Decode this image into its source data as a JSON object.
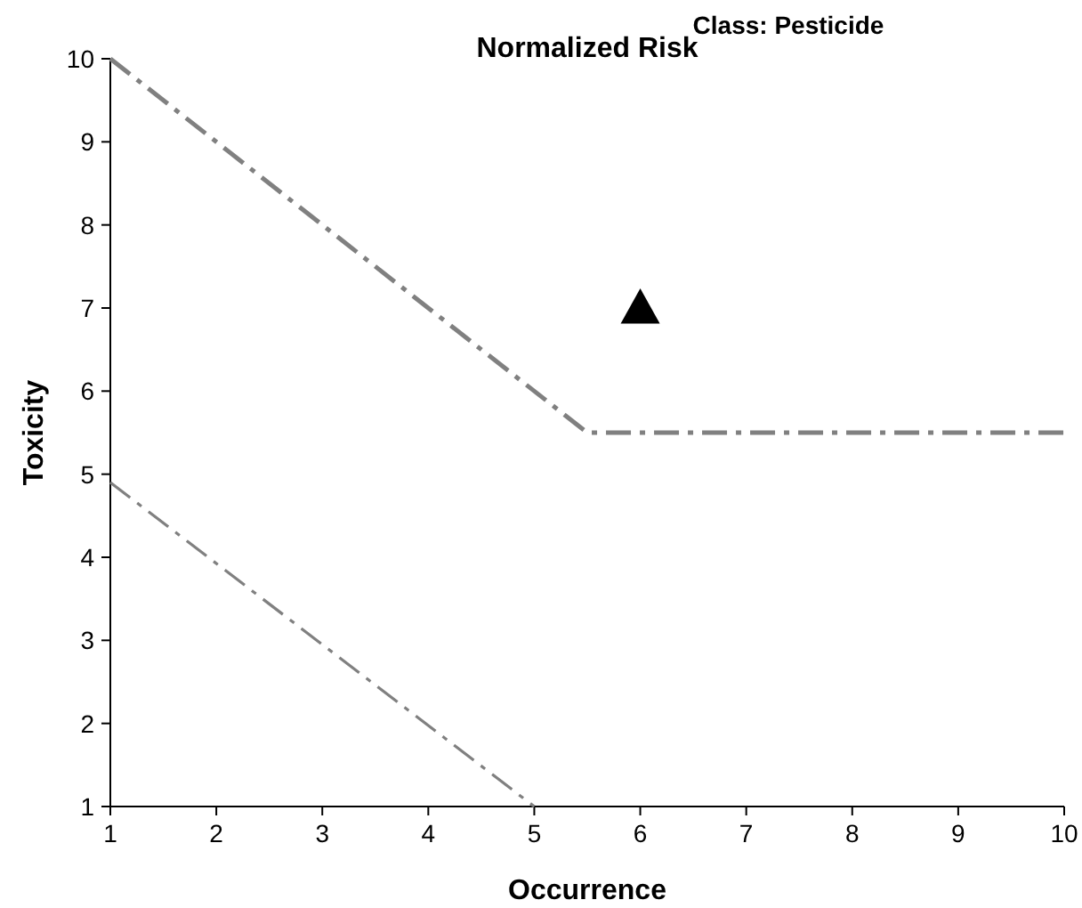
{
  "chart_data": {
    "type": "line",
    "title": "Normalized Risk",
    "subtitle": "Class: Pesticide",
    "xlabel": "Occurrence",
    "ylabel": "Toxicity",
    "xlim": [
      1,
      10
    ],
    "xticks": [
      1,
      2,
      3,
      4,
      5,
      6,
      7,
      8,
      9,
      10
    ],
    "ylim": [
      1,
      10
    ],
    "yticks": [
      1,
      2,
      3,
      4,
      5,
      6,
      7,
      8,
      9,
      10
    ],
    "grid": false,
    "line_style": "dashed",
    "series": [
      {
        "color": "#808080",
        "x": [
          1,
          5.5,
          10
        ],
        "values": [
          10,
          5.5,
          5.5
        ]
      },
      {
        "color": "#808080",
        "x": [
          1,
          5
        ],
        "values": [
          4.9,
          1
        ]
      },
      {
        "type": "scatter",
        "color": "#000000",
        "marker": "triangle",
        "x": [
          6
        ],
        "values": [
          7
        ]
      }
    ]
  }
}
